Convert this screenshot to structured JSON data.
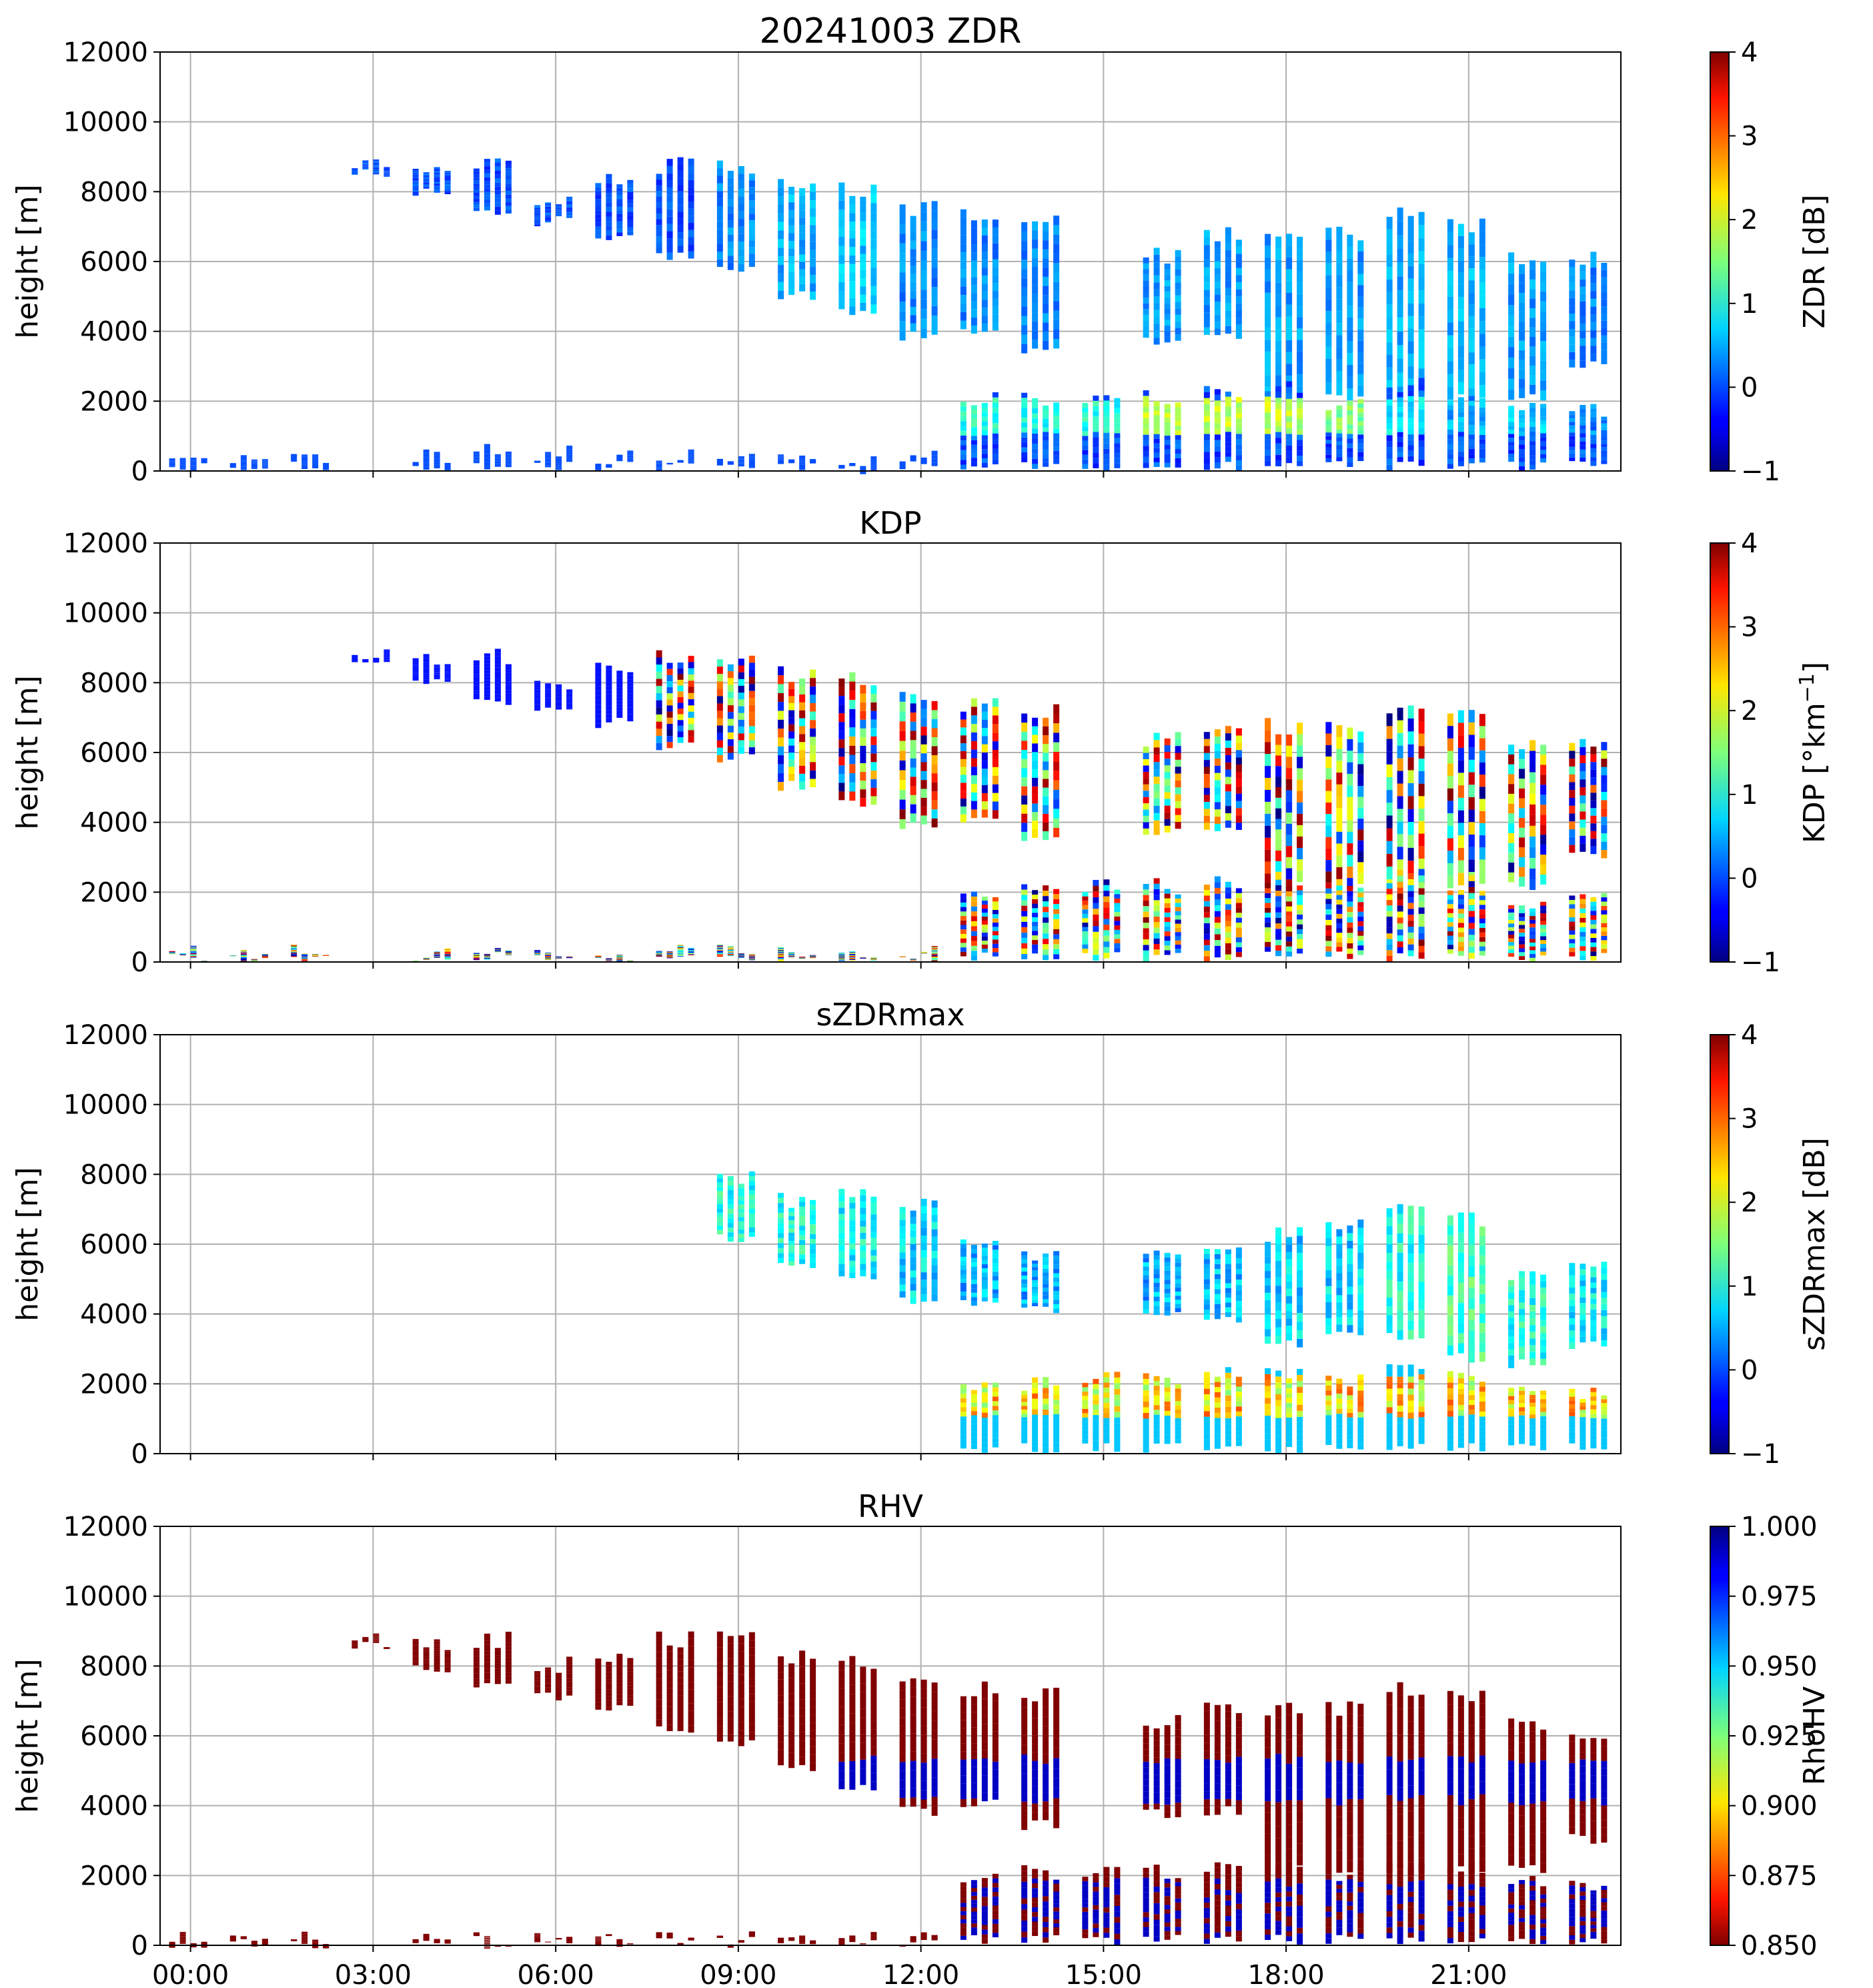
{
  "figure": {
    "panels_shared_x_ticks": [
      "00:00",
      "03:00",
      "06:00",
      "09:00",
      "12:00",
      "15:00",
      "18:00",
      "21:00"
    ],
    "panels": [
      {
        "id": "zdr",
        "title": "20241003 ZDR",
        "ylabel": "height [m]",
        "yticks": [
          "0",
          "2000",
          "4000",
          "6000",
          "8000",
          "10000",
          "12000"
        ],
        "colorbar": {
          "label": "ZDR [dB]",
          "ticks": [
            "−1",
            "0",
            "1",
            "2",
            "3",
            "4"
          ],
          "colormap": "jet",
          "range": [
            -1,
            4
          ]
        }
      },
      {
        "id": "kdp",
        "title": "KDP",
        "ylabel": "height [m]",
        "yticks": [
          "0",
          "2000",
          "4000",
          "6000",
          "8000",
          "10000",
          "12000"
        ],
        "colorbar": {
          "label_main": "KDP [°km",
          "label_sup": "−1",
          "label_end": "]",
          "ticks": [
            "−1",
            "0",
            "1",
            "2",
            "3",
            "4"
          ],
          "colormap": "jet",
          "range": [
            -1,
            4
          ]
        }
      },
      {
        "id": "szdrmax",
        "title": "sZDRmax",
        "ylabel": "height [m]",
        "yticks": [
          "0",
          "2000",
          "4000",
          "6000",
          "8000",
          "10000",
          "12000"
        ],
        "colorbar": {
          "label": "sZDRmax [dB]",
          "ticks": [
            "−1",
            "0",
            "1",
            "2",
            "3",
            "4"
          ],
          "colormap": "jet",
          "range": [
            -1,
            4
          ]
        }
      },
      {
        "id": "rhv",
        "title": "RHV",
        "ylabel": "height [m]",
        "yticks": [
          "0",
          "2000",
          "4000",
          "6000",
          "8000",
          "10000",
          "12000"
        ],
        "colorbar": {
          "label": "RhoHV",
          "ticks": [
            "0.850",
            "0.875",
            "0.900",
            "0.925",
            "0.950",
            "0.975",
            "1.000"
          ],
          "colormap": "jet_r",
          "range": [
            0.85,
            1.0
          ]
        }
      }
    ]
  },
  "chart_data": [
    {
      "type": "heatmap",
      "title": "20241003 ZDR",
      "xlabel": "",
      "ylabel": "height [m]",
      "xlim_hours": [
        -0.5,
        23.5
      ],
      "ylim": [
        0,
        12000
      ],
      "grid": true,
      "colorbar_label": "ZDR [dB]",
      "clim": [
        -1,
        4
      ],
      "upper_echo_blocks": [
        {
          "time": "03:00",
          "base_m": 8400,
          "top_m": 9000,
          "zdr_db": 0
        },
        {
          "time": "04:00",
          "base_m": 7800,
          "top_m": 8800,
          "zdr_db": 0
        },
        {
          "time": "05:00",
          "base_m": 7300,
          "top_m": 9000,
          "zdr_db": 0
        },
        {
          "time": "06:00",
          "base_m": 7000,
          "top_m": 8000,
          "zdr_db": 0
        },
        {
          "time": "07:00",
          "base_m": 6600,
          "top_m": 8600,
          "zdr_db": 0
        },
        {
          "time": "08:00",
          "base_m": 6000,
          "top_m": 9000,
          "zdr_db": 0
        },
        {
          "time": "09:00",
          "base_m": 5700,
          "top_m": 9000,
          "zdr_db": 0.3
        },
        {
          "time": "10:00",
          "base_m": 4900,
          "top_m": 8500,
          "zdr_db": 0.5
        },
        {
          "time": "11:00",
          "base_m": 4400,
          "top_m": 8300,
          "zdr_db": 0.6
        },
        {
          "time": "12:00",
          "base_m": 3700,
          "top_m": 7800,
          "zdr_db": 0.3
        },
        {
          "time": "13:00",
          "base_m": 3900,
          "top_m": 7600,
          "zdr_db": 0.3
        },
        {
          "time": "14:00",
          "base_m": 3300,
          "top_m": 7400,
          "zdr_db": 0.3
        },
        {
          "time": "16:00",
          "base_m": 3600,
          "top_m": 6400,
          "zdr_db": 0.4
        },
        {
          "time": "17:00",
          "base_m": 3700,
          "top_m": 7000,
          "zdr_db": 0.4
        },
        {
          "time": "18:00",
          "base_m": 2000,
          "top_m": 7000,
          "zdr_db": 0.4
        },
        {
          "time": "19:00",
          "base_m": 2000,
          "top_m": 7000,
          "zdr_db": 0.4
        },
        {
          "time": "20:00",
          "base_m": 2000,
          "top_m": 7600,
          "zdr_db": 0.5
        },
        {
          "time": "21:00",
          "base_m": 2000,
          "top_m": 7300,
          "zdr_db": 0.5
        },
        {
          "time": "22:00",
          "base_m": 2000,
          "top_m": 6300,
          "zdr_db": 0.4
        },
        {
          "time": "23:00",
          "base_m": 2900,
          "top_m": 6300,
          "zdr_db": 0.3
        }
      ],
      "lower_echo_blocks": [
        {
          "time": "13:00",
          "base_m": 0,
          "top_m": 2300,
          "zdr_db": 1.0
        },
        {
          "time": "14:00",
          "base_m": 0,
          "top_m": 2300,
          "zdr_db": 1.0
        },
        {
          "time": "15:00",
          "base_m": 0,
          "top_m": 2400,
          "zdr_db": 1.0
        },
        {
          "time": "16:00",
          "base_m": 0,
          "top_m": 2400,
          "zdr_db": 1.8
        },
        {
          "time": "17:00",
          "base_m": 0,
          "top_m": 2500,
          "zdr_db": 1.8
        },
        {
          "time": "18:00",
          "base_m": 0,
          "top_m": 2600,
          "zdr_db": 1.8
        },
        {
          "time": "19:00",
          "base_m": 0,
          "top_m": 2200,
          "zdr_db": 1.5
        },
        {
          "time": "20:00",
          "base_m": 0,
          "top_m": 2700,
          "zdr_db": 0.8
        },
        {
          "time": "21:00",
          "base_m": 0,
          "top_m": 2400,
          "zdr_db": 0.5
        },
        {
          "time": "22:00",
          "base_m": 0,
          "top_m": 2000,
          "zdr_db": 0.6
        },
        {
          "time": "23:00",
          "base_m": 0,
          "top_m": 2000,
          "zdr_db": 0.3
        }
      ]
    },
    {
      "type": "heatmap",
      "title": "KDP",
      "xlabel": "",
      "ylabel": "height [m]",
      "xlim_hours": [
        -0.5,
        23.5
      ],
      "ylim": [
        0,
        12000
      ],
      "grid": true,
      "colorbar_label": "KDP [°km⁻¹]",
      "clim": [
        -1,
        4
      ],
      "note_values": "noisy, values spanning full colour range (-1 to 4) inside echoes from 08:00 onward"
    },
    {
      "type": "heatmap",
      "title": "sZDRmax",
      "xlabel": "",
      "ylabel": "height [m]",
      "xlim_hours": [
        -0.5,
        23.5
      ],
      "ylim": [
        0,
        12000
      ],
      "grid": true,
      "colorbar_label": "sZDRmax [dB]",
      "clim": [
        -1,
        4
      ],
      "upper_echo_blocks": [
        {
          "time": "09:00",
          "base_m": 6000,
          "top_m": 8200,
          "value_db": 1.0
        },
        {
          "time": "10:00",
          "base_m": 5200,
          "top_m": 7500,
          "value_db": 1.0
        },
        {
          "time": "11:00",
          "base_m": 4800,
          "top_m": 7800,
          "value_db": 0.9
        },
        {
          "time": "12:00",
          "base_m": 4200,
          "top_m": 7400,
          "value_db": 0.7
        },
        {
          "time": "13:00",
          "base_m": 4200,
          "top_m": 6400,
          "value_db": 0.5
        },
        {
          "time": "14:00",
          "base_m": 4000,
          "top_m": 6000,
          "value_db": 0.5
        },
        {
          "time": "16:00",
          "base_m": 3800,
          "top_m": 6100,
          "value_db": 0.5
        },
        {
          "time": "17:00",
          "base_m": 3700,
          "top_m": 6300,
          "value_db": 0.6
        },
        {
          "time": "18:00",
          "base_m": 3000,
          "top_m": 6500,
          "value_db": 0.7
        },
        {
          "time": "19:00",
          "base_m": 3200,
          "top_m": 6800,
          "value_db": 0.7
        },
        {
          "time": "20:00",
          "base_m": 3200,
          "top_m": 7400,
          "value_db": 1.0
        },
        {
          "time": "21:00",
          "base_m": 2600,
          "top_m": 7000,
          "value_db": 1.2
        },
        {
          "time": "22:00",
          "base_m": 2400,
          "top_m": 5400,
          "value_db": 1.0
        },
        {
          "time": "23:00",
          "base_m": 3000,
          "top_m": 5500,
          "value_db": 0.8
        }
      ]
    },
    {
      "type": "heatmap",
      "title": "RHV",
      "xlabel": "",
      "ylabel": "height [m]",
      "xlim_hours": [
        -0.5,
        23.5
      ],
      "ylim": [
        0,
        12000
      ],
      "grid": true,
      "colorbar_label": "RhoHV",
      "clim": [
        0.85,
        1.0
      ],
      "note_values": "echoes mostly at or below 0.850 (dark red); values near 1.000 (dark blue) at 4000-5000 m and below 2000 m from 13:00 onward"
    }
  ]
}
